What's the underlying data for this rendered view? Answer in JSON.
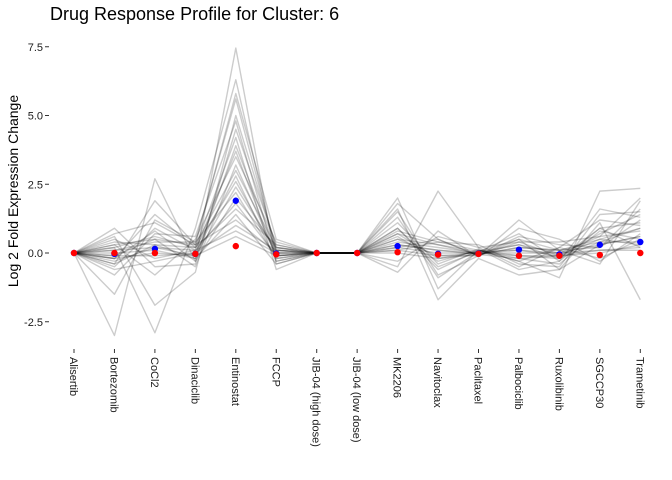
{
  "chart_data": {
    "type": "line",
    "title": "Drug Response Profile for Cluster:  6",
    "xlabel": "",
    "ylabel": "Log 2 Fold Expression Change",
    "ylim": [
      -3.4,
      7.8
    ],
    "yticks": [
      -2.5,
      0.0,
      2.5,
      5.0,
      7.5
    ],
    "ytick_labels": [
      "-2.5",
      "0.0",
      "2.5",
      "5.0",
      "7.5"
    ],
    "categories": [
      "Alisertib",
      "Bortezomib",
      "CoCl2",
      "Dinaciclib",
      "Entinostat",
      "FCCP",
      "JIB-04 (high dose)",
      "JIB-04 (low dose)",
      "MK2206",
      "Navitoclax",
      "Paclitaxel",
      "Palbociclib",
      "Ruxolibinib",
      "SGCCP30",
      "Trametinib"
    ],
    "grid": false,
    "legend": "none",
    "line_color": "#000000",
    "line_opacity": 0.2,
    "mean_color": "#0000ff",
    "median_color": "#ff0000",
    "mean": [
      0.0,
      -0.03,
      0.15,
      -0.03,
      1.9,
      -0.02,
      0.0,
      0.0,
      0.25,
      -0.03,
      -0.02,
      0.12,
      -0.05,
      0.3,
      0.4
    ],
    "median": [
      0.0,
      0.0,
      0.0,
      -0.03,
      0.25,
      -0.05,
      0.0,
      0.0,
      0.03,
      -0.06,
      -0.03,
      -0.1,
      -0.1,
      -0.07,
      0.0
    ],
    "series": [
      {
        "values": [
          0,
          -3.0,
          2.7,
          -0.3,
          7.45,
          -0.4,
          0,
          0,
          2.0,
          -1.3,
          0.1,
          -0.3,
          -0.9,
          2.25,
          2.35
        ]
      },
      {
        "values": [
          0,
          0.2,
          -2.9,
          0.9,
          6.3,
          -0.1,
          0,
          0,
          1.6,
          -1.7,
          -0.2,
          -0.8,
          -0.6,
          1.1,
          -1.7
        ]
      },
      {
        "values": [
          0,
          -0.4,
          1.9,
          0.3,
          5.8,
          0.5,
          0,
          0,
          -0.5,
          2.25,
          0.2,
          0.4,
          0.4,
          0.6,
          2.0
        ]
      },
      {
        "values": [
          0,
          -1.5,
          1.2,
          0.4,
          5.6,
          0.1,
          0,
          0,
          1.8,
          0.5,
          -0.1,
          1.2,
          0.1,
          -0.4,
          1.9
        ]
      },
      {
        "values": [
          0,
          0.6,
          -1.9,
          -0.7,
          5.0,
          0.2,
          0,
          0,
          0.8,
          0.4,
          0.3,
          -0.4,
          -0.5,
          1.4,
          1.5
        ]
      },
      {
        "values": [
          0,
          -0.8,
          0.7,
          0.6,
          4.8,
          -0.3,
          0,
          0,
          1.3,
          -0.9,
          0.05,
          0.3,
          -0.2,
          0.9,
          1.1
        ]
      },
      {
        "values": [
          0,
          0.9,
          -0.5,
          -0.4,
          4.5,
          0.3,
          0,
          0,
          -0.7,
          0.8,
          -0.15,
          0.9,
          0.5,
          -0.3,
          0.7
        ]
      },
      {
        "values": [
          0,
          -0.2,
          1.4,
          0.2,
          4.2,
          -0.6,
          0,
          0,
          1.1,
          -0.4,
          0.15,
          -0.6,
          -0.3,
          1.6,
          1.3
        ]
      },
      {
        "values": [
          0,
          0.4,
          0.3,
          -0.2,
          3.9,
          0.1,
          0,
          0,
          0.5,
          0.3,
          -0.05,
          0.2,
          0.1,
          0.4,
          0.9
        ]
      },
      {
        "values": [
          0,
          -0.5,
          0.9,
          0.1,
          3.7,
          -0.2,
          0,
          0,
          0.9,
          -0.6,
          0.1,
          -0.2,
          -0.4,
          0.8,
          0.5
        ]
      },
      {
        "values": [
          0,
          0.3,
          -0.8,
          0.5,
          3.5,
          0.4,
          0,
          0,
          0.2,
          0.5,
          -0.1,
          0.6,
          0.3,
          0.2,
          1.6
        ]
      },
      {
        "values": [
          0,
          -0.1,
          0.5,
          -0.5,
          3.2,
          -0.1,
          0,
          0,
          0.7,
          -0.2,
          0.05,
          0.1,
          -0.1,
          0.5,
          0.3
        ]
      },
      {
        "values": [
          0,
          0.7,
          1.1,
          0.3,
          3.0,
          0.2,
          0,
          0,
          -0.3,
          0.6,
          0.2,
          -0.5,
          0.2,
          1.2,
          1.0
        ]
      },
      {
        "values": [
          0,
          -0.6,
          -0.3,
          0.0,
          2.8,
          -0.3,
          0,
          0,
          1.5,
          -0.8,
          -0.1,
          0.5,
          -0.6,
          0.3,
          0.6
        ]
      },
      {
        "values": [
          0,
          0.2,
          0.6,
          0.2,
          2.6,
          0.0,
          0,
          0,
          0.4,
          0.2,
          0.0,
          0.3,
          0.0,
          0.6,
          0.8
        ]
      },
      {
        "values": [
          0,
          -0.3,
          0.2,
          -0.1,
          2.4,
          0.1,
          0,
          0,
          0.6,
          -0.3,
          0.1,
          -0.1,
          -0.2,
          0.4,
          0.4
        ]
      },
      {
        "values": [
          0,
          0.1,
          0.4,
          0.4,
          2.2,
          -0.2,
          0,
          0,
          0.3,
          0.1,
          -0.05,
          0.2,
          0.1,
          0.2,
          1.2
        ]
      },
      {
        "values": [
          0,
          -0.2,
          0.8,
          -0.3,
          2.0,
          0.2,
          0,
          0,
          0.9,
          -0.5,
          0.05,
          0.7,
          -0.3,
          0.9,
          0.2
        ]
      },
      {
        "values": [
          0,
          0.5,
          -0.2,
          0.1,
          1.8,
          -0.1,
          0,
          0,
          0.1,
          0.4,
          0.1,
          -0.3,
          0.2,
          -0.2,
          0.5
        ]
      },
      {
        "values": [
          0,
          -0.4,
          0.3,
          0.2,
          1.6,
          0.3,
          0,
          0,
          0.5,
          -0.1,
          -0.1,
          0.4,
          -0.1,
          0.7,
          1.4
        ]
      },
      {
        "values": [
          0,
          0.0,
          0.1,
          -0.2,
          1.4,
          -0.4,
          0,
          0,
          0.2,
          0.0,
          0.0,
          0.0,
          0.0,
          0.1,
          0.1
        ]
      },
      {
        "values": [
          0,
          0.3,
          0.5,
          0.3,
          1.2,
          0.0,
          0,
          0,
          0.7,
          0.3,
          0.05,
          0.5,
          0.1,
          0.5,
          0.9
        ]
      },
      {
        "values": [
          0,
          -0.1,
          -0.1,
          0.0,
          1.0,
          0.1,
          0,
          0,
          0.0,
          -0.2,
          -0.05,
          -0.2,
          -0.1,
          0.0,
          0.3
        ]
      },
      {
        "values": [
          0,
          0.1,
          0.2,
          0.1,
          0.8,
          0.0,
          0,
          0,
          0.3,
          0.1,
          0.0,
          0.1,
          0.0,
          0.3,
          0.6
        ]
      },
      {
        "values": [
          0,
          -0.2,
          0.0,
          -0.1,
          0.6,
          -0.1,
          0,
          0,
          0.1,
          -0.1,
          0.0,
          -0.1,
          -0.1,
          0.1,
          0.2
        ]
      }
    ]
  }
}
